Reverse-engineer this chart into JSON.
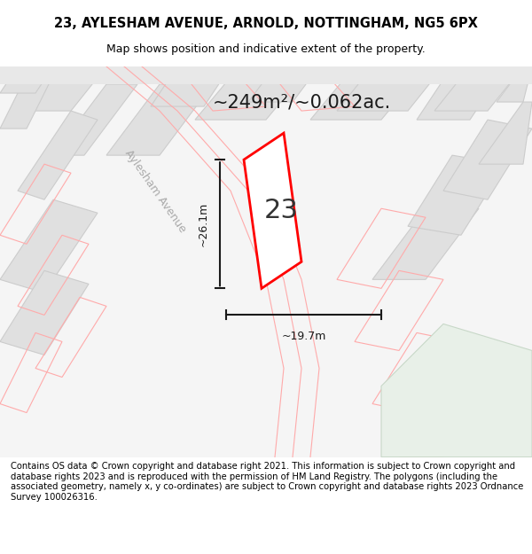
{
  "title_line1": "23, AYLESHAM AVENUE, ARNOLD, NOTTINGHAM, NG5 6PX",
  "title_line2": "Map shows position and indicative extent of the property.",
  "area_text": "~249m²/~0.062ac.",
  "number_label": "23",
  "dim_height": "~26.1m",
  "dim_width": "~19.7m",
  "street_label": "Aylesham Avenue",
  "footer_text": "Contains OS data © Crown copyright and database right 2021. This information is subject to Crown copyright and database rights 2023 and is reproduced with the permission of HM Land Registry. The polygons (including the associated geometry, namely x, y co-ordinates) are subject to Crown copyright and database rights 2023 Ordnance Survey 100026316.",
  "bg_color": "#f5f5f5",
  "map_bg": "#f0f0f0",
  "plot_fill": "#ffffff",
  "plot_edge": "#ff0000",
  "dim_color": "#1a1a1a",
  "street_color": "#aaaaaa",
  "neighbor_fill": "#e0e0e0",
  "neighbor_edge": "#cccccc",
  "pink_edge": "#ffaaaa",
  "green_area": "#e8f0e8"
}
